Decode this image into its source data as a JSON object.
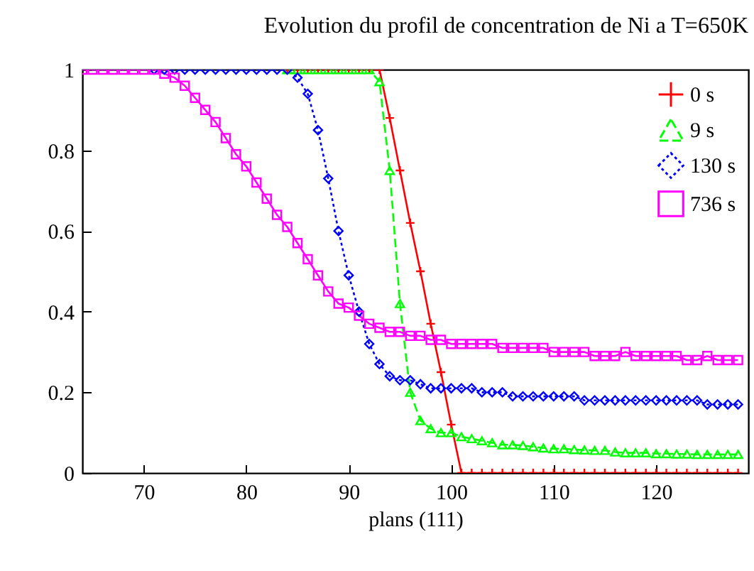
{
  "chart_data": {
    "type": "line",
    "title": "Evolution du profil de concentration de Ni a T=650K",
    "xlabel": "plans (111)",
    "x": [
      64,
      65,
      66,
      67,
      68,
      69,
      70,
      71,
      72,
      73,
      74,
      75,
      76,
      77,
      78,
      79,
      80,
      81,
      82,
      83,
      84,
      85,
      86,
      87,
      88,
      89,
      90,
      91,
      92,
      93,
      94,
      95,
      96,
      97,
      98,
      99,
      100,
      101,
      102,
      103,
      104,
      105,
      106,
      107,
      108,
      109,
      110,
      111,
      112,
      113,
      114,
      115,
      116,
      117,
      118,
      119,
      120,
      121,
      122,
      123,
      124,
      125,
      126,
      127,
      128
    ],
    "xlim": [
      64,
      129
    ],
    "xticks": [
      70,
      80,
      90,
      100,
      110,
      120
    ],
    "ylim": [
      0,
      1
    ],
    "yticks": [
      {
        "value": 0,
        "label": "0"
      },
      0.2,
      0.4,
      0.6,
      0.8,
      {
        "value": 1,
        "label": "1"
      }
    ],
    "grid": false,
    "legend": "top right",
    "series": [
      {
        "name": "0 s",
        "color": "#ff0000",
        "marker": "cross",
        "line_style": "solid",
        "values": [
          null,
          null,
          null,
          null,
          null,
          null,
          null,
          null,
          null,
          null,
          null,
          null,
          null,
          null,
          null,
          null,
          null,
          null,
          null,
          null,
          1,
          1,
          1,
          1,
          1,
          1,
          1,
          1,
          1,
          1,
          0.88,
          0.75,
          0.62,
          0.5,
          0.37,
          0.25,
          0.12,
          0,
          0,
          0,
          0,
          0,
          0,
          0,
          0,
          0,
          0,
          0,
          0,
          0,
          0,
          0,
          0,
          0,
          0,
          0,
          0,
          0,
          0,
          0,
          0,
          0,
          0,
          0,
          0
        ]
      },
      {
        "name": "9 s",
        "color": "#00ff00",
        "marker": "triangle",
        "line_style": "dashed",
        "values": [
          null,
          null,
          null,
          null,
          null,
          null,
          null,
          null,
          null,
          null,
          null,
          null,
          null,
          null,
          null,
          null,
          null,
          null,
          null,
          null,
          1,
          1,
          1,
          1,
          1,
          1,
          1,
          1,
          1,
          0.97,
          0.75,
          0.42,
          0.2,
          0.13,
          0.11,
          0.1,
          0.1,
          0.09,
          0.085,
          0.08,
          0.075,
          0.07,
          0.07,
          0.068,
          0.065,
          0.062,
          0.06,
          0.06,
          0.058,
          0.057,
          0.056,
          0.056,
          0.052,
          0.05,
          0.05,
          0.05,
          0.048,
          0.048,
          0.047,
          0.047,
          0.046,
          0.046,
          0.046,
          0.046,
          0.046
        ]
      },
      {
        "name": "130 s",
        "color": "#0000ff",
        "marker": "diamond",
        "line_style": "dotted",
        "values": [
          null,
          null,
          null,
          null,
          null,
          null,
          null,
          1,
          1,
          1,
          1,
          1,
          1,
          1,
          1,
          1,
          1,
          1,
          1,
          1,
          1,
          0.98,
          0.94,
          0.85,
          0.73,
          0.6,
          0.49,
          0.4,
          0.32,
          0.27,
          0.24,
          0.23,
          0.23,
          0.22,
          0.21,
          0.21,
          0.21,
          0.21,
          0.21,
          0.2,
          0.2,
          0.2,
          0.19,
          0.19,
          0.19,
          0.19,
          0.19,
          0.19,
          0.19,
          0.18,
          0.18,
          0.18,
          0.18,
          0.18,
          0.18,
          0.18,
          0.18,
          0.18,
          0.18,
          0.18,
          0.18,
          0.17,
          0.17,
          0.17,
          0.17
        ]
      },
      {
        "name": "736 s",
        "color": "#ff00ff",
        "marker": "square",
        "line_style": "solid",
        "values": [
          1,
          1,
          1,
          1,
          1,
          1,
          1,
          1,
          0.99,
          0.98,
          0.96,
          0.93,
          0.9,
          0.87,
          0.83,
          0.79,
          0.76,
          0.72,
          0.68,
          0.64,
          0.61,
          0.57,
          0.53,
          0.49,
          0.45,
          0.42,
          0.41,
          0.39,
          0.37,
          0.36,
          0.35,
          0.35,
          0.34,
          0.34,
          0.33,
          0.33,
          0.32,
          0.32,
          0.32,
          0.32,
          0.32,
          0.31,
          0.31,
          0.31,
          0.31,
          0.31,
          0.3,
          0.3,
          0.3,
          0.3,
          0.29,
          0.29,
          0.29,
          0.3,
          0.29,
          0.29,
          0.29,
          0.29,
          0.29,
          0.28,
          0.28,
          0.29,
          0.28,
          0.28,
          0.28
        ]
      }
    ]
  }
}
